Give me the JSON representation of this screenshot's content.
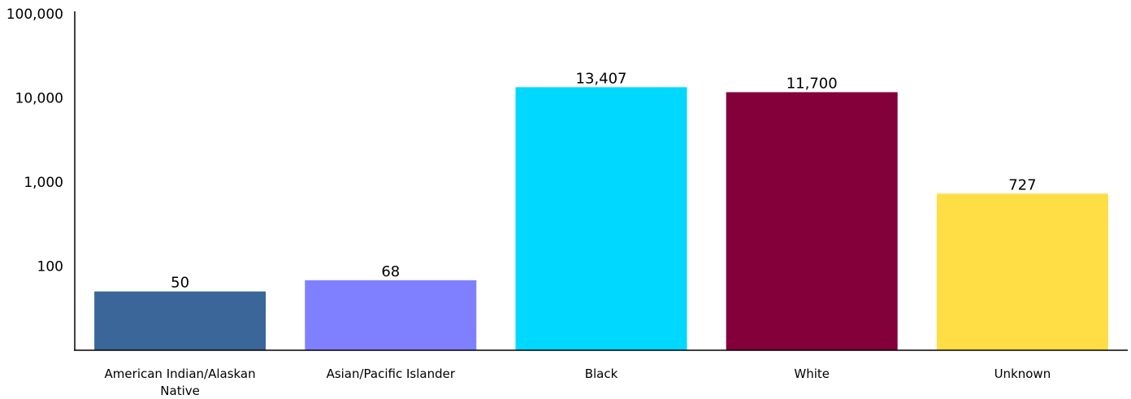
{
  "chart_data": {
    "type": "bar",
    "scale": "log",
    "categories": [
      "American Indian/Alaskan Native",
      "Asian/Pacific Islander",
      "Black",
      "White",
      "Unknown"
    ],
    "category_label_lines": [
      [
        "American Indian/Alaskan",
        "Native"
      ],
      [
        "Asian/Pacific Islander"
      ],
      [
        "Black"
      ],
      [
        "White"
      ],
      [
        "Unknown"
      ]
    ],
    "values": [
      50,
      68,
      13407,
      11700,
      727
    ],
    "value_labels": [
      "50",
      "68",
      "13,407",
      "11,700",
      "727"
    ],
    "colors": [
      "#3b6699",
      "#7f80ff",
      "#00d8ff",
      "#83003a",
      "#ffdd44"
    ],
    "yticks": [
      100,
      1000,
      10000,
      100000
    ],
    "ytick_labels": [
      "100",
      "1,000",
      "10,000",
      "100,000"
    ],
    "ylim": [
      10,
      100000
    ],
    "grid": false,
    "legend": "none",
    "title": "",
    "xlabel": "",
    "ylabel": ""
  }
}
